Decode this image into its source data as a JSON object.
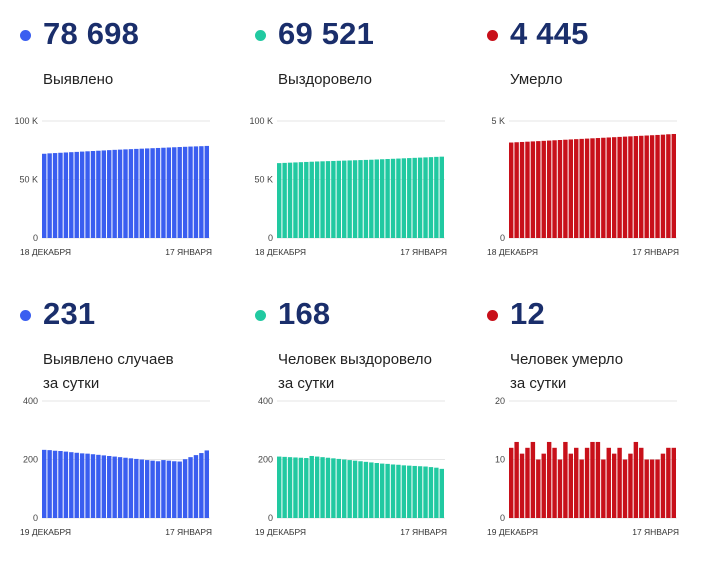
{
  "panels": [
    {
      "number": "78 698",
      "caption": "Выявлено",
      "color": "#3a5ef0",
      "chart_data": {
        "type": "bar",
        "ymax": 100000,
        "ytick_values": [
          0,
          50000,
          100000
        ],
        "ytick_labels": [
          "0",
          "50 K",
          "100 K"
        ],
        "x_labels": [
          "18 ДЕКАБРЯ",
          "17 ЯНВАРЯ"
        ],
        "values": [
          72000,
          72350,
          72600,
          72850,
          73100,
          73350,
          73600,
          73850,
          74100,
          74350,
          74600,
          74850,
          75100,
          75350,
          75550,
          75750,
          75950,
          76150,
          76350,
          76550,
          76750,
          76950,
          77150,
          77350,
          77550,
          77750,
          77950,
          78150,
          78300,
          78467,
          78698
        ]
      }
    },
    {
      "number": "69 521",
      "caption": "Выздоровело",
      "color": "#21c9a1",
      "chart_data": {
        "type": "bar",
        "ymax": 100000,
        "ytick_values": [
          0,
          50000,
          100000
        ],
        "ytick_labels": [
          "0",
          "50 K",
          "100 K"
        ],
        "x_labels": [
          "18 ДЕКАБРЯ",
          "17 ЯНВАРЯ"
        ],
        "values": [
          64000,
          64200,
          64400,
          64600,
          64800,
          65000,
          65200,
          65400,
          65550,
          65700,
          65850,
          66000,
          66150,
          66300,
          66450,
          66600,
          66750,
          66900,
          67100,
          67300,
          67500,
          67700,
          67900,
          68100,
          68300,
          68500,
          68700,
          68900,
          69100,
          69353,
          69521
        ]
      }
    },
    {
      "number": "4 445",
      "caption": "Умерло",
      "color": "#c8101a",
      "chart_data": {
        "type": "bar",
        "ymax": 5000,
        "ytick_values": [
          0,
          5000
        ],
        "ytick_labels": [
          "0",
          "5 K"
        ],
        "x_labels": [
          "18 ДЕКАБРЯ",
          "17 ЯНВАРЯ"
        ],
        "values": [
          4080,
          4092,
          4104,
          4116,
          4128,
          4140,
          4152,
          4164,
          4176,
          4188,
          4200,
          4212,
          4224,
          4236,
          4248,
          4260,
          4272,
          4284,
          4296,
          4308,
          4320,
          4332,
          4344,
          4356,
          4368,
          4380,
          4392,
          4404,
          4416,
          4433,
          4445
        ]
      }
    },
    {
      "number": "231",
      "caption": "Выявлено случаев\nза сутки",
      "color": "#3a5ef0",
      "chart_data": {
        "type": "bar",
        "ymax": 400,
        "ytick_values": [
          0,
          200,
          400
        ],
        "ytick_labels": [
          "0",
          "200",
          "400"
        ],
        "x_labels": [
          "19 ДЕКАБРЯ",
          "17 ЯНВАРЯ"
        ],
        "values": [
          233,
          232,
          230,
          229,
          227,
          225,
          223,
          221,
          220,
          218,
          216,
          214,
          212,
          210,
          208,
          206,
          204,
          202,
          200,
          198,
          196,
          194,
          198,
          196,
          194,
          193,
          201,
          208,
          215,
          222,
          231
        ]
      }
    },
    {
      "number": "168",
      "caption": "Человек выздоровело\nза сутки",
      "color": "#21c9a1",
      "chart_data": {
        "type": "bar",
        "ymax": 400,
        "ytick_values": [
          0,
          200,
          400
        ],
        "ytick_labels": [
          "0",
          "200",
          "400"
        ],
        "x_labels": [
          "19 ДЕКАБРЯ",
          "17 ЯНВАРЯ"
        ],
        "values": [
          210,
          209,
          208,
          207,
          206,
          205,
          212,
          210,
          208,
          206,
          204,
          202,
          200,
          198,
          196,
          194,
          192,
          190,
          188,
          186,
          185,
          183,
          182,
          180,
          179,
          178,
          177,
          176,
          174,
          172,
          168
        ]
      }
    },
    {
      "number": "12",
      "caption": "Человек умерло\nза сутки",
      "color": "#c8101a",
      "chart_data": {
        "type": "bar",
        "ymax": 20,
        "ytick_values": [
          0,
          10,
          20
        ],
        "ytick_labels": [
          "0",
          "10",
          "20"
        ],
        "x_labels": [
          "19 ДЕКАБРЯ",
          "17 ЯНВАРЯ"
        ],
        "values": [
          12,
          13,
          11,
          12,
          13,
          10,
          11,
          13,
          12,
          10,
          13,
          11,
          12,
          10,
          12,
          13,
          13,
          10,
          12,
          11,
          12,
          10,
          11,
          13,
          12,
          10,
          10,
          10,
          11,
          12,
          12
        ]
      }
    }
  ]
}
